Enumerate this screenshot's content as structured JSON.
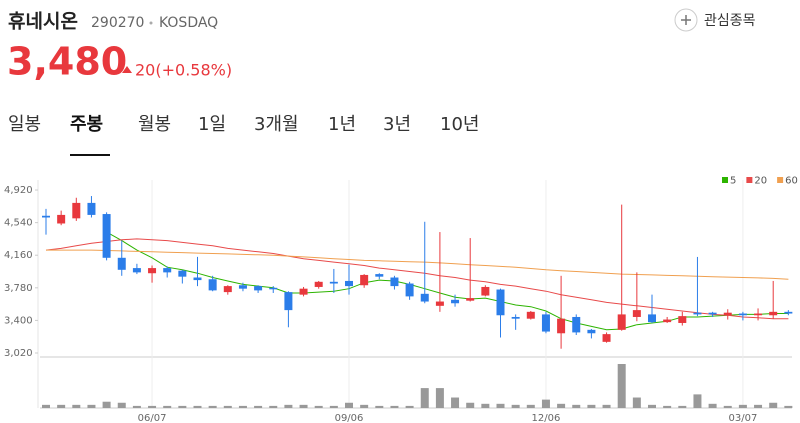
{
  "header": {
    "name": "휴네시온",
    "code": "290270",
    "market": "KOSDAQ",
    "watchlist": "관심종목",
    "price": "3,480",
    "change": "20(+0.58%)"
  },
  "tabs": {
    "items": [
      "일봉",
      "주봉",
      "월봉",
      "1일",
      "3개월",
      "1년",
      "3년",
      "10년"
    ],
    "selected": 1
  },
  "chart_data": {
    "type": "candlestick",
    "categories": [
      null,
      null,
      null,
      null,
      null,
      null,
      null,
      "06/07",
      null,
      null,
      null,
      null,
      null,
      null,
      null,
      null,
      null,
      null,
      null,
      null,
      "09/06",
      null,
      null,
      null,
      null,
      null,
      null,
      null,
      null,
      null,
      null,
      null,
      null,
      "12/06",
      null,
      null,
      null,
      null,
      null,
      null,
      null,
      null,
      null,
      null,
      null,
      null,
      "03/07",
      null,
      null,
      null
    ],
    "open": [
      4620,
      4530,
      4590,
      4770,
      4640,
      4130,
      4010,
      3950,
      4010,
      3980,
      3900,
      3880,
      3730,
      3810,
      3800,
      3780,
      3730,
      3700,
      3790,
      3850,
      3860,
      3810,
      3940,
      3900,
      3830,
      3710,
      3570,
      3640,
      3630,
      3690,
      3760,
      3440,
      3420,
      3470,
      3250,
      3440,
      3290,
      3150,
      3290,
      3440,
      3470,
      3380,
      3370,
      3490,
      3490,
      3460,
      3480,
      3460,
      3460,
      3500
    ],
    "high": [
      4700,
      4680,
      4830,
      4850,
      4660,
      4330,
      4060,
      4040,
      4030,
      3990,
      4140,
      3920,
      3810,
      3840,
      3810,
      3800,
      3740,
      3790,
      3860,
      4000,
      4050,
      3940,
      3950,
      3920,
      3850,
      4550,
      4430,
      3700,
      4360,
      3810,
      3770,
      3470,
      3510,
      3500,
      3920,
      3470,
      3300,
      3260,
      4750,
      3960,
      3700,
      3440,
      3500,
      4140,
      3500,
      3530,
      3500,
      3540,
      3860,
      3520
    ],
    "low": [
      4400,
      4510,
      4560,
      4600,
      4100,
      3920,
      3940,
      3840,
      3900,
      3830,
      3800,
      3740,
      3700,
      3740,
      3720,
      3720,
      3320,
      3680,
      3770,
      3720,
      3700,
      3780,
      3880,
      3760,
      3640,
      3600,
      3500,
      3560,
      3620,
      3680,
      3200,
      3290,
      3410,
      3250,
      3070,
      3230,
      3190,
      3140,
      3280,
      3390,
      3370,
      3370,
      3340,
      3450,
      3440,
      3410,
      3400,
      3400,
      3420,
      3460
    ],
    "close": [
      4600,
      4630,
      4770,
      4630,
      4130,
      3990,
      3960,
      4010,
      3960,
      3910,
      3870,
      3750,
      3800,
      3770,
      3750,
      3770,
      3520,
      3770,
      3850,
      3830,
      3800,
      3930,
      3910,
      3800,
      3680,
      3620,
      3620,
      3600,
      3660,
      3790,
      3460,
      3420,
      3500,
      3270,
      3420,
      3260,
      3250,
      3240,
      3470,
      3520,
      3380,
      3410,
      3450,
      3470,
      3470,
      3490,
      3460,
      3480,
      3500,
      3480
    ],
    "volume": [
      60000,
      60000,
      60000,
      60000,
      120000,
      100000,
      40000,
      40000,
      40000,
      40000,
      40000,
      40000,
      40000,
      40000,
      40000,
      40000,
      60000,
      60000,
      40000,
      40000,
      100000,
      60000,
      40000,
      40000,
      40000,
      380000,
      380000,
      200000,
      100000,
      80000,
      80000,
      60000,
      60000,
      160000,
      80000,
      60000,
      60000,
      60000,
      840000,
      200000,
      60000,
      40000,
      40000,
      260000,
      80000,
      40000,
      60000,
      60000,
      100000,
      40000
    ],
    "up_color": "#e8383d",
    "down_color": "#2b7de9",
    "volume_color": "#999999",
    "moving_averages": [
      {
        "name": "5",
        "color": "#2db400",
        "values": [
          null,
          null,
          null,
          null,
          4430,
          4330,
          4220,
          4130,
          4020,
          3990,
          3950,
          3900,
          3860,
          3820,
          3800,
          3780,
          3720,
          3720,
          3730,
          3740,
          3770,
          3840,
          3870,
          3860,
          3820,
          3770,
          3720,
          3670,
          3650,
          3660,
          3620,
          3580,
          3560,
          3510,
          3420,
          3370,
          3330,
          3290,
          3300,
          3350,
          3370,
          3390,
          3440,
          3440,
          3450,
          3460,
          3470,
          3470,
          3480,
          3480
        ]
      },
      {
        "name": "20",
        "color": "#e84a4a",
        "values": [
          4220,
          4240,
          4270,
          4300,
          4320,
          4340,
          4350,
          4340,
          4330,
          4310,
          4290,
          4270,
          4240,
          4220,
          4200,
          4180,
          4150,
          4120,
          4100,
          4080,
          4060,
          4040,
          4010,
          3990,
          3970,
          3950,
          3920,
          3900,
          3870,
          3850,
          3820,
          3800,
          3770,
          3740,
          3700,
          3670,
          3640,
          3610,
          3590,
          3570,
          3550,
          3530,
          3510,
          3490,
          3470,
          3460,
          3440,
          3430,
          3420,
          3420
        ]
      },
      {
        "name": "60",
        "color": "#f0a050",
        "values": [
          4220,
          4220,
          4220,
          4220,
          4215,
          4210,
          4205,
          4200,
          4195,
          4190,
          4185,
          4180,
          4175,
          4170,
          4165,
          4160,
          4150,
          4140,
          4130,
          4120,
          4110,
          4100,
          4095,
          4090,
          4085,
          4080,
          4070,
          4060,
          4050,
          4040,
          4030,
          4020,
          4005,
          3990,
          3980,
          3970,
          3960,
          3950,
          3940,
          3935,
          3930,
          3925,
          3920,
          3915,
          3910,
          3905,
          3900,
          3895,
          3890,
          3880
        ]
      }
    ],
    "ylim": [
      2985,
      5037
    ],
    "yticks": [
      {
        "value": 4920,
        "label": "4,920"
      },
      {
        "value": 4540,
        "label": "4,540"
      },
      {
        "value": 4160,
        "label": "4,160"
      },
      {
        "value": 3780,
        "label": "3,780"
      },
      {
        "value": 3400,
        "label": "3,400"
      },
      {
        "value": 3020,
        "label": "3,020"
      }
    ],
    "legend": "top-right"
  }
}
